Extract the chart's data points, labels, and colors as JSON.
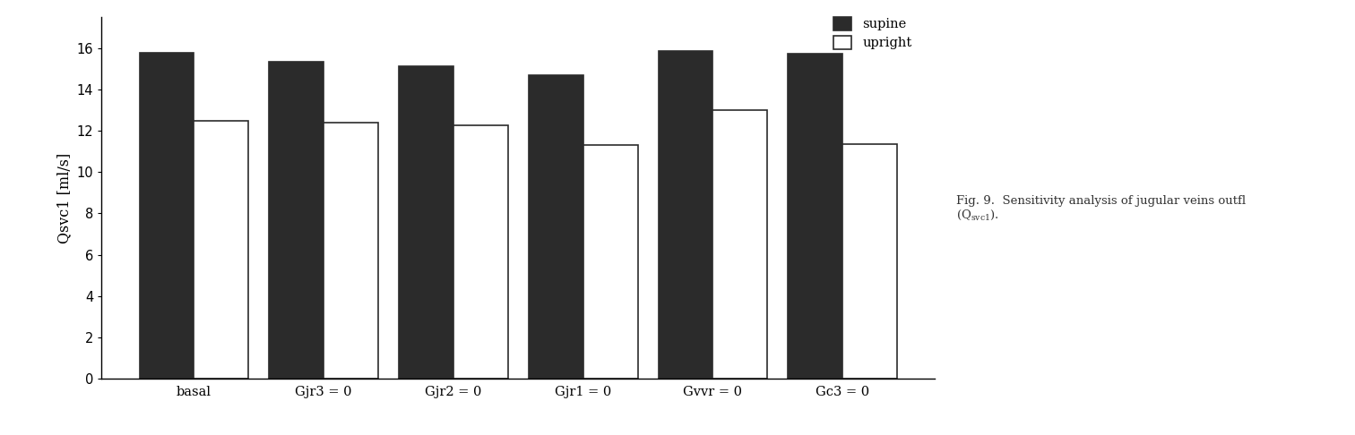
{
  "categories": [
    "basal",
    "Gjr3 = 0",
    "Gjr2 = 0",
    "Gjr1 = 0",
    "Gvvr = 0",
    "Gc3 = 0"
  ],
  "supine_values": [
    15.8,
    15.35,
    15.15,
    14.7,
    15.85,
    15.75
  ],
  "upright_values": [
    12.5,
    12.4,
    12.25,
    11.3,
    13.0,
    11.35
  ],
  "supine_color": "#2b2b2b",
  "upright_color": "#ffffff",
  "bar_edge_color": "#2b2b2b",
  "ylabel": "Qsvc1 [ml/s]",
  "ylim": [
    0,
    17.5
  ],
  "yticks": [
    0,
    2,
    4,
    6,
    8,
    10,
    12,
    14,
    16
  ],
  "legend_supine": "supine",
  "legend_upright": "upright",
  "bar_width": 0.42,
  "background_color": "#ffffff",
  "tick_fontsize": 10.5,
  "label_fontsize": 11.5,
  "legend_fontsize": 10.5,
  "edge_linewidth": 1.2
}
